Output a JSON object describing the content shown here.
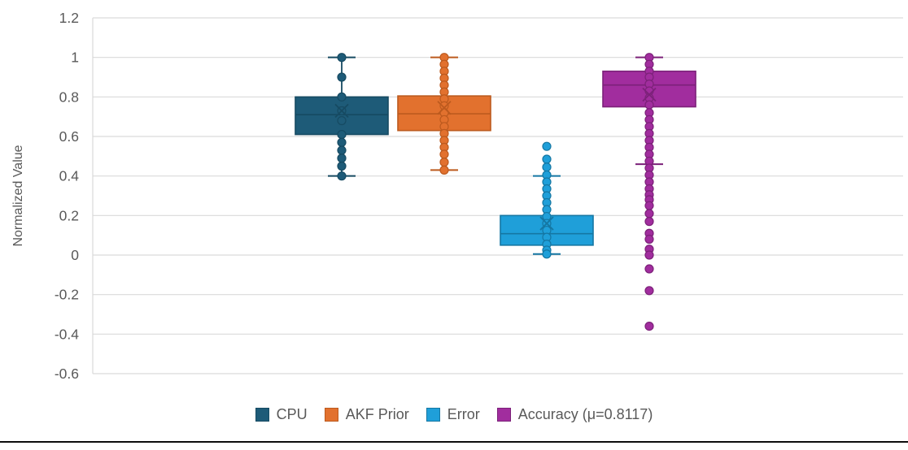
{
  "figure": {
    "background": "#ffffff",
    "gridline_color": "#d9d9d9",
    "text_color": "#595959",
    "bottom_rule_color": "#0d0d0d"
  },
  "chart_data": {
    "type": "box",
    "title": "",
    "xlabel": "",
    "ylabel": "Normalized Value",
    "ylim": [
      -0.6,
      1.2
    ],
    "ytick_step": 0.2,
    "ytick_labels": [
      "1.2",
      "1",
      "0.8",
      "0.6",
      "0.4",
      "0.2",
      "0",
      "-0.2",
      "-0.4",
      "-0.6"
    ],
    "grid": true,
    "legend_position": "bottom-center",
    "series": [
      {
        "name": "CPU",
        "legend_label": "CPU",
        "fill": "#1E5B78",
        "border": "#164A62",
        "whisker_low": 0.4,
        "q1": 0.61,
        "median": 0.71,
        "q3": 0.8,
        "whisker_high": 1.0,
        "mean": 0.73,
        "points": [
          1.0,
          0.9,
          0.8,
          0.73,
          0.68,
          0.61,
          0.57,
          0.53,
          0.49,
          0.45,
          0.4
        ]
      },
      {
        "name": "AKF Prior",
        "legend_label": "AKF Prior",
        "fill": "#E2712E",
        "border": "#BC5A1E",
        "whisker_low": 0.43,
        "q1": 0.63,
        "median": 0.715,
        "q3": 0.805,
        "whisker_high": 1.0,
        "mean": 0.745,
        "points": [
          1.0,
          0.965,
          0.93,
          0.895,
          0.86,
          0.825,
          0.79,
          0.755,
          0.72,
          0.685,
          0.65,
          0.615,
          0.58,
          0.545,
          0.51,
          0.47,
          0.43
        ]
      },
      {
        "name": "Error",
        "legend_label": "Error",
        "fill": "#1F9FD9",
        "border": "#1577A3",
        "whisker_low": 0.005,
        "q1": 0.05,
        "median": 0.108,
        "q3": 0.2,
        "whisker_high": 0.4,
        "mean": 0.16,
        "points": [
          0.55,
          0.485,
          0.445,
          0.405,
          0.37,
          0.335,
          0.3,
          0.265,
          0.23,
          0.195,
          0.16,
          0.125,
          0.09,
          0.055,
          0.025,
          0.005
        ]
      },
      {
        "name": "Accuracy",
        "legend_label": "Accuracy (μ=0.8117)",
        "fill": "#A12D9E",
        "border": "#7C2179",
        "whisker_low": 0.46,
        "q1": 0.75,
        "median": 0.86,
        "q3": 0.93,
        "whisker_high": 1.0,
        "mean": 0.8117,
        "points": [
          1.0,
          0.965,
          0.93,
          0.9,
          0.865,
          0.83,
          0.795,
          0.76,
          0.72,
          0.685,
          0.65,
          0.615,
          0.58,
          0.545,
          0.51,
          0.475,
          0.44,
          0.405,
          0.37,
          0.335,
          0.305,
          0.28,
          0.25,
          0.21,
          0.17,
          0.11,
          0.08,
          0.03,
          0.0,
          -0.07,
          -0.18,
          -0.36
        ]
      }
    ]
  }
}
